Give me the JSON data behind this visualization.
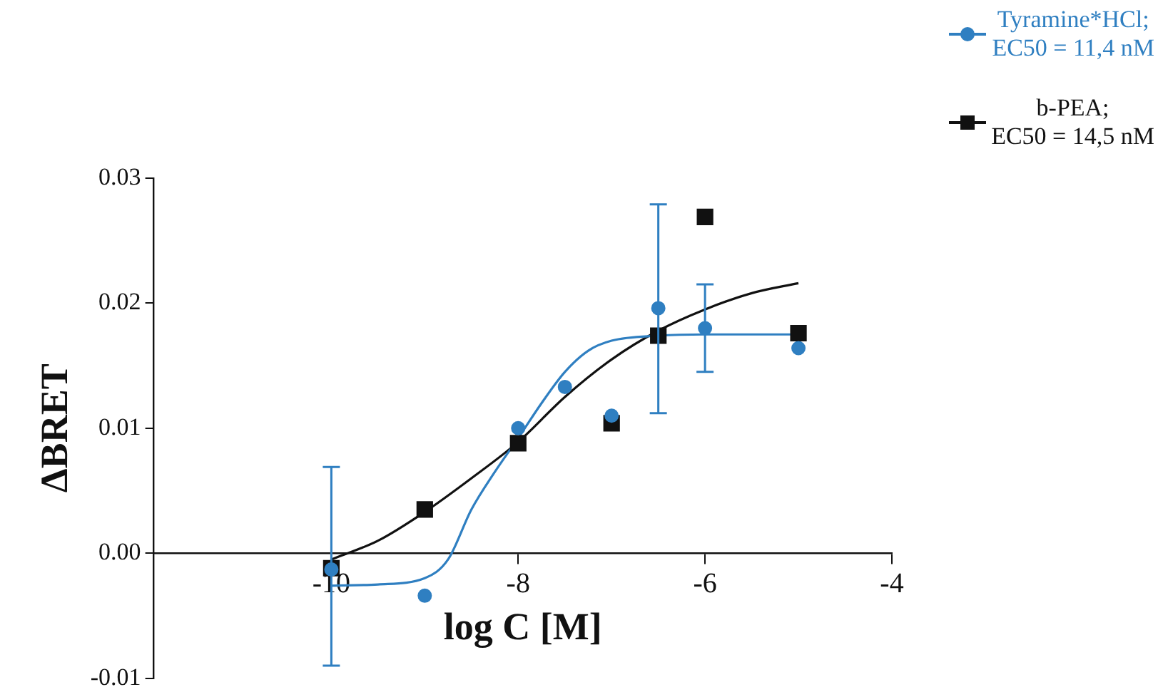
{
  "chart_data": {
    "type": "scatter",
    "xlabel": "log C [M]",
    "ylabel": "ΔBRET",
    "xlim": [
      -11.9,
      -4
    ],
    "xticks": [
      -10,
      -8,
      -6,
      -4
    ],
    "ylim": [
      -0.01,
      0.03
    ],
    "yticks": [
      {
        "value": -0.01,
        "label": "-0.01"
      },
      {
        "value": 0,
        "label": "0.00"
      },
      {
        "value": 0.01,
        "label": "0.01"
      },
      {
        "value": 0.02,
        "label": "0.02"
      },
      {
        "value": 0.03,
        "label": "0.03"
      }
    ],
    "grid": false,
    "legend": "top right",
    "series": [
      {
        "name": "Tyramine*HCl; EC50 = 11,4 nM",
        "marker": "circle",
        "color": "#2f7fc1",
        "x": [
          -10,
          -9,
          -8,
          -7.5,
          -7,
          -6.5,
          -6,
          -5
        ],
        "values": [
          -0.0013,
          -0.0034,
          0.01,
          0.0133,
          0.011,
          0.0196,
          0.018,
          0.0164
        ],
        "errors": [
          [
            -0.009,
            0.0069
          ],
          null,
          null,
          null,
          null,
          [
            0.0112,
            0.0279
          ],
          [
            0.0145,
            0.0215
          ],
          null
        ]
      },
      {
        "name": "b-PEA; EC50 = 14,5 nM",
        "marker": "square",
        "color": "#111111",
        "x": [
          -10,
          -9,
          -8,
          -7,
          -6.5,
          -6,
          -5
        ],
        "values": [
          -0.0012,
          0.0035,
          0.0088,
          0.0104,
          0.0174,
          0.0269,
          0.0176
        ]
      },
      {
        "type": "line",
        "marker": "none",
        "color": "#2f7fc1",
        "x": [
          -10,
          -9.5,
          -9,
          -8.75,
          -8.5,
          -8.25,
          -8,
          -7.75,
          -7.5,
          -7.25,
          -7,
          -6.5,
          -6,
          -5
        ],
        "values": [
          -0.0026,
          -0.0025,
          -0.002,
          -0.0005,
          0.0035,
          0.0065,
          0.0092,
          0.012,
          0.0145,
          0.0162,
          0.017,
          0.0174,
          0.0175,
          0.0175
        ]
      },
      {
        "type": "line",
        "marker": "none",
        "color": "#111111",
        "x": [
          -10,
          -9.5,
          -9,
          -8.5,
          -8,
          -7.5,
          -7,
          -6.5,
          -6,
          -5.5,
          -5
        ],
        "values": [
          -0.0005,
          0.001,
          0.0033,
          0.006,
          0.0089,
          0.0125,
          0.0155,
          0.0178,
          0.0195,
          0.0208,
          0.0216
        ]
      }
    ]
  }
}
